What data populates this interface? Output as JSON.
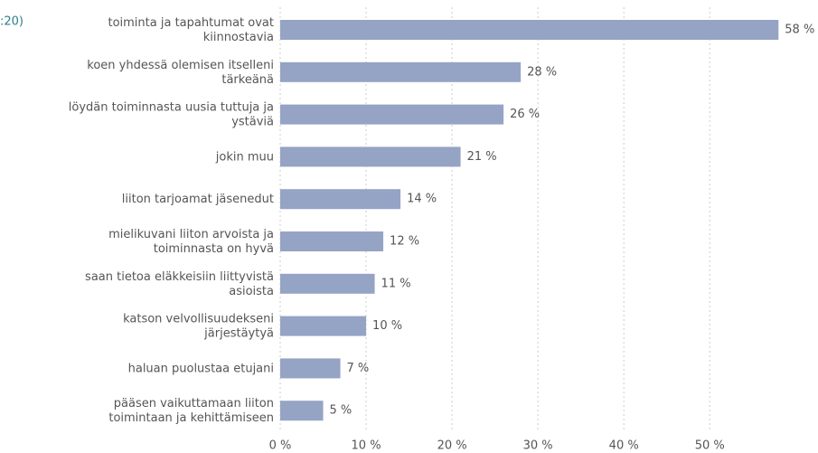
{
  "chart_data": {
    "type": "bar",
    "orientation": "horizontal",
    "annotation": ":20)",
    "categories": [
      "toiminta ja tapahtumat ovat\nkiinnostavia",
      "koen yhdessä olemisen itselleni\ntärkeänä",
      "löydän toiminnasta uusia tuttuja ja\nystäviä",
      "jokin muu",
      "liiton tarjoamat jäsenedut",
      "mielikuvani liiton arvoista ja\ntoiminnasta on hyvä",
      "saan tietoa eläkkeisiin liittyvistä\nasioista",
      "katson velvollisuudekseni\njärjestäytyä",
      "haluan puolustaa etujani",
      "pääsen vaikuttamaan liiton\ntoimintaan ja kehittämiseen"
    ],
    "values": [
      58,
      28,
      26,
      21,
      14,
      12,
      11,
      10,
      7,
      5
    ],
    "value_labels": [
      "58 %",
      "28 %",
      "26 %",
      "21 %",
      "14 %",
      "12 %",
      "11 %",
      "10 %",
      "7 %",
      "5 %"
    ],
    "color": "#95a3c4",
    "xlim": [
      0,
      62.6
    ],
    "xticks": [
      {
        "value": 0,
        "label": "0 %"
      },
      {
        "value": 10,
        "label": "10 %"
      },
      {
        "value": 20,
        "label": "20 %"
      },
      {
        "value": 30,
        "label": "30 %"
      },
      {
        "value": 40,
        "label": "40 %"
      },
      {
        "value": 50,
        "label": "50 %"
      }
    ],
    "grid": true
  }
}
